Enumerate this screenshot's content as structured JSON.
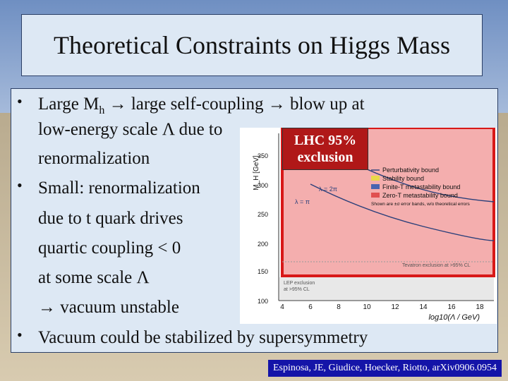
{
  "title": "Theoretical Constraints on Higgs Mass",
  "bullets": [
    {
      "symbol": "•",
      "lines": [
        {
          "pre": "Large M",
          "sub": "h",
          "post": " → large self-coupling → blow up at"
        },
        "low-energy scale Λ due to",
        "renormalization"
      ]
    },
    {
      "symbol": "•",
      "lines": [
        "Small: renormalization",
        "due to t quark drives",
        "quartic coupling < 0",
        "at some scale Λ",
        "→ vacuum unstable"
      ]
    },
    {
      "symbol": "•",
      "lines": [
        "Vacuum could be stabilized by supersymmetry"
      ]
    }
  ],
  "lhc_box": {
    "line1": "LHC 95%",
    "line2": "exclusion",
    "color": "#b01818"
  },
  "plot": {
    "ylabel": "M_H [GeV]",
    "xlabel": "log10(Λ / GeV)",
    "y_ticks": [
      "350",
      "300",
      "250",
      "200",
      "150",
      "100"
    ],
    "x_ticks": [
      "4",
      "6",
      "8",
      "10",
      "12",
      "14",
      "16",
      "18"
    ],
    "legend": [
      {
        "label": "Perturbativity bound",
        "swatch": "line"
      },
      {
        "label": "Stability bound",
        "swatch": "#e8d84a"
      },
      {
        "label": "Finite-T metastability bound",
        "swatch": "#4a64b0"
      },
      {
        "label": "Zero-T metastability bound",
        "swatch": "#e05050"
      }
    ],
    "legend_note": "Shown are ±σ error bands, w/o theoretical errors",
    "curve_labels": {
      "lambda_2pi": "λ = 2π",
      "lambda_pi": "λ = π"
    },
    "tevatron_label": "Tevatron exclusion at >95% CL",
    "lep_label_1": "LEP exclusion",
    "lep_label_2": "at >95% CL",
    "overlay_color": "#f2a0a0"
  },
  "citation": "Espinosa, JE, Giudice, Hoecker, Riotto, arXiv0906.0954"
}
